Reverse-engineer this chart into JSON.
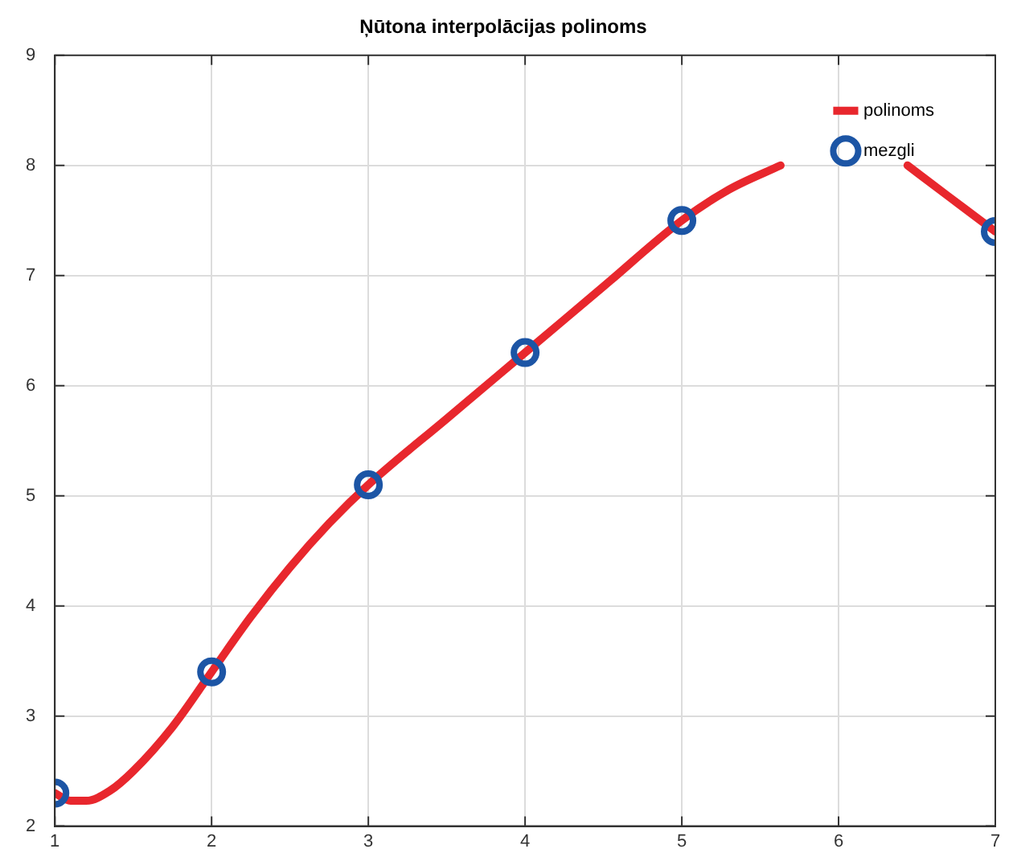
{
  "chart_data": {
    "type": "line",
    "title": "Ņūtona interpolācijas polinoms",
    "xlim": [
      1,
      7
    ],
    "ylim": [
      2,
      9
    ],
    "xticks": [
      1,
      2,
      3,
      4,
      5,
      6,
      7
    ],
    "yticks": [
      2,
      3,
      4,
      5,
      6,
      7,
      8,
      9
    ],
    "grid": true,
    "legend": "top right",
    "series": [
      {
        "name": "polinoms",
        "color": "#e8272d",
        "marker": "none",
        "x": [
          1,
          1.1,
          1.2,
          1.35,
          1.5,
          1.75,
          2,
          2.25,
          2.5,
          2.75,
          3,
          3.5,
          4,
          4.5,
          5,
          5.3,
          5.63,
          6,
          6.44,
          6.7,
          7
        ],
        "values": [
          2.3,
          2.23,
          2.23,
          2.32,
          2.5,
          2.9,
          3.4,
          3.9,
          4.35,
          4.75,
          5.1,
          5.7,
          6.3,
          6.9,
          7.5,
          7.78,
          8.0,
          null,
          8.0,
          7.72,
          7.4
        ]
      },
      {
        "name": "mezgli",
        "type": "scatter",
        "color": "#1c55a5",
        "marker": "circle",
        "x": [
          1,
          2,
          3,
          4,
          5,
          6,
          7
        ],
        "values": [
          2.3,
          3.4,
          5.1,
          6.3,
          7.5,
          null,
          7.4
        ]
      }
    ]
  }
}
